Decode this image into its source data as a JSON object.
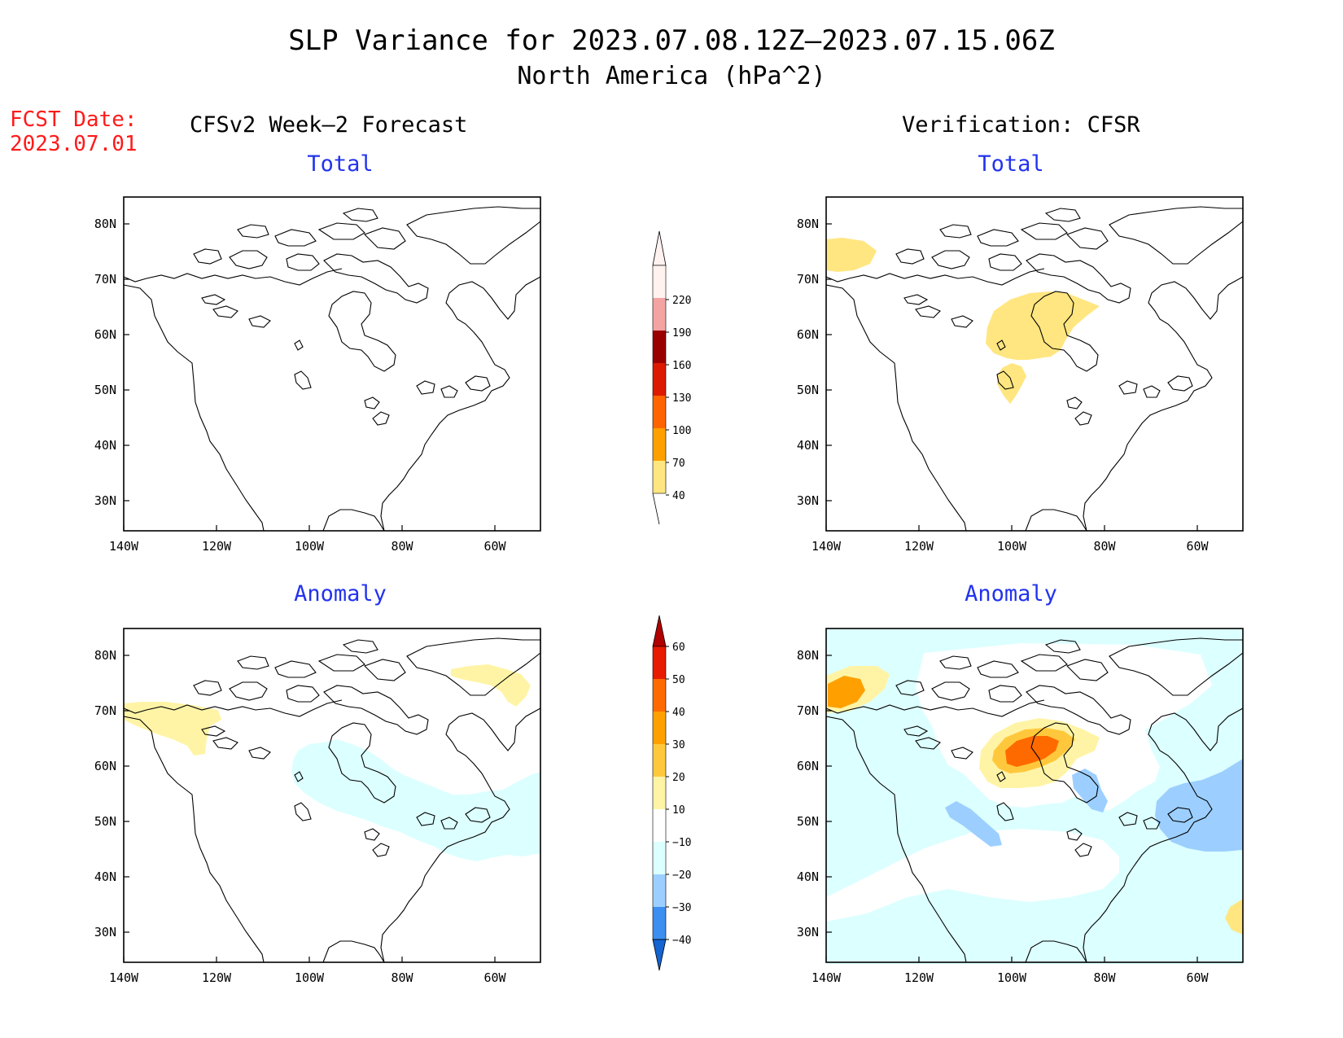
{
  "title": "SLP Variance for 2023.07.08.12Z–2023.07.15.06Z",
  "subtitle": "North America (hPa^2)",
  "fcst_label": "FCST Date:",
  "fcst_date": "2023.07.01",
  "columns": {
    "forecast": "CFSv2 Week–2 Forecast",
    "verification": "Verification: CFSR"
  },
  "panels": {
    "total_label": "Total",
    "anomaly_label": "Anomaly"
  },
  "axes": {
    "lat_labels": [
      "80N",
      "70N",
      "60N",
      "50N",
      "40N",
      "30N"
    ],
    "lon_labels": [
      "140W",
      "120W",
      "100W",
      "80W",
      "60W"
    ]
  },
  "colorbar_total": {
    "levels": [
      "220",
      "190",
      "160",
      "130",
      "100",
      "70",
      "40"
    ],
    "colors": [
      "#fff2ef",
      "#f4a3a3",
      "#9b0000",
      "#dd1a00",
      "#ff6400",
      "#ffa000",
      "#ffe680"
    ]
  },
  "colorbar_anomaly": {
    "levels": [
      "60",
      "50",
      "40",
      "30",
      "20",
      "10",
      "−10",
      "−20",
      "−30",
      "−40"
    ],
    "colors": [
      "#b00000",
      "#e81a00",
      "#ff6a00",
      "#ffa000",
      "#ffc83c",
      "#fff4a6",
      "#ffffff",
      "#dcffff",
      "#9ccfff",
      "#3c8ef0",
      "#1464d2"
    ]
  }
}
